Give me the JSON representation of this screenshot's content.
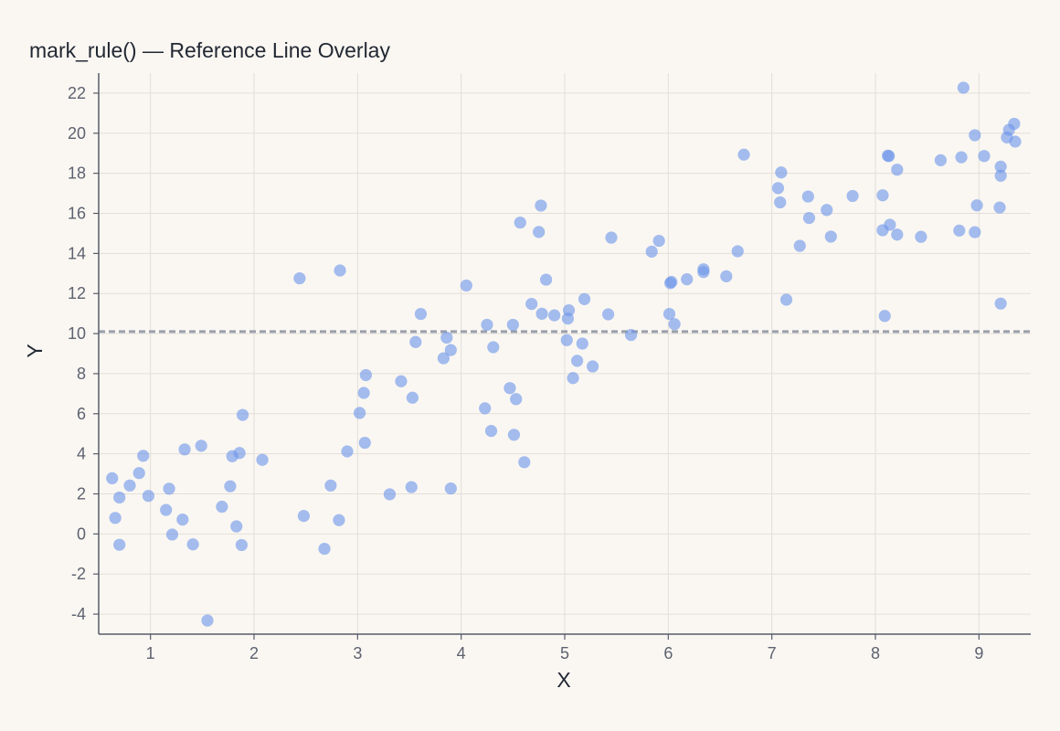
{
  "chart_data": {
    "type": "scatter",
    "title": "mark_rule() — Reference Line Overlay",
    "xlabel": "X",
    "ylabel": "Y",
    "xlim": [
      0.5,
      9.5
    ],
    "ylim": [
      -5,
      23
    ],
    "x_ticks": [
      "1",
      "2",
      "3",
      "4",
      "5",
      "6",
      "7",
      "8",
      "9"
    ],
    "y_ticks": [
      "-4",
      "-2",
      "0",
      "2",
      "4",
      "6",
      "8",
      "10",
      "12",
      "14",
      "16",
      "18",
      "20",
      "22"
    ],
    "grid": true,
    "colors": {
      "point": "#6e96ea",
      "rule": "#9aa0ab",
      "background": "#faf7f2"
    },
    "reference_line": {
      "y": 10.1
    },
    "points": [
      [
        0.63,
        2.78
      ],
      [
        0.66,
        0.8
      ],
      [
        0.7,
        1.82
      ],
      [
        0.7,
        -0.54
      ],
      [
        0.8,
        2.42
      ],
      [
        0.89,
        3.04
      ],
      [
        0.93,
        3.9
      ],
      [
        0.98,
        1.9
      ],
      [
        1.15,
        1.2
      ],
      [
        1.18,
        2.26
      ],
      [
        1.21,
        -0.03
      ],
      [
        1.31,
        0.72
      ],
      [
        1.33,
        4.22
      ],
      [
        1.41,
        -0.52
      ],
      [
        1.49,
        4.4
      ],
      [
        1.55,
        -4.32
      ],
      [
        1.69,
        1.36
      ],
      [
        1.77,
        2.38
      ],
      [
        1.79,
        3.88
      ],
      [
        1.83,
        0.38
      ],
      [
        1.86,
        4.04
      ],
      [
        1.88,
        -0.55
      ],
      [
        1.89,
        5.94
      ],
      [
        2.08,
        3.7
      ],
      [
        2.44,
        12.76
      ],
      [
        2.48,
        0.9
      ],
      [
        2.68,
        -0.74
      ],
      [
        2.74,
        2.42
      ],
      [
        2.82,
        0.69
      ],
      [
        2.83,
        13.15
      ],
      [
        2.9,
        4.12
      ],
      [
        3.02,
        6.04
      ],
      [
        3.06,
        7.04
      ],
      [
        3.07,
        4.55
      ],
      [
        3.08,
        7.93
      ],
      [
        3.31,
        1.98
      ],
      [
        3.42,
        7.62
      ],
      [
        3.52,
        2.34
      ],
      [
        3.53,
        6.8
      ],
      [
        3.56,
        9.58
      ],
      [
        3.61,
        10.98
      ],
      [
        3.83,
        8.77
      ],
      [
        3.86,
        9.8
      ],
      [
        3.9,
        2.27
      ],
      [
        3.9,
        9.18
      ],
      [
        4.05,
        12.4
      ],
      [
        4.23,
        6.27
      ],
      [
        4.25,
        10.44
      ],
      [
        4.29,
        5.14
      ],
      [
        4.31,
        9.32
      ],
      [
        4.47,
        7.28
      ],
      [
        4.5,
        10.44
      ],
      [
        4.51,
        4.95
      ],
      [
        4.53,
        6.73
      ],
      [
        4.57,
        15.54
      ],
      [
        4.61,
        3.58
      ],
      [
        4.68,
        11.48
      ],
      [
        4.75,
        15.07
      ],
      [
        4.77,
        16.39
      ],
      [
        4.78,
        10.99
      ],
      [
        4.82,
        12.69
      ],
      [
        4.9,
        10.91
      ],
      [
        5.02,
        9.67
      ],
      [
        5.03,
        10.75
      ],
      [
        5.04,
        11.16
      ],
      [
        5.08,
        7.78
      ],
      [
        5.12,
        8.64
      ],
      [
        5.17,
        9.5
      ],
      [
        5.19,
        11.72
      ],
      [
        5.27,
        8.36
      ],
      [
        5.42,
        10.96
      ],
      [
        5.45,
        14.79
      ],
      [
        5.64,
        9.93
      ],
      [
        5.84,
        14.09
      ],
      [
        5.91,
        14.63
      ],
      [
        6.01,
        10.98
      ],
      [
        6.02,
        12.52
      ],
      [
        6.03,
        12.58
      ],
      [
        6.06,
        10.47
      ],
      [
        6.18,
        12.71
      ],
      [
        6.34,
        13.07
      ],
      [
        6.34,
        13.21
      ],
      [
        6.56,
        12.86
      ],
      [
        6.67,
        14.11
      ],
      [
        6.73,
        18.93
      ],
      [
        7.06,
        17.26
      ],
      [
        7.08,
        16.55
      ],
      [
        7.09,
        18.04
      ],
      [
        7.14,
        11.69
      ],
      [
        7.27,
        14.38
      ],
      [
        7.35,
        16.84
      ],
      [
        7.36,
        15.77
      ],
      [
        7.53,
        16.17
      ],
      [
        7.57,
        14.84
      ],
      [
        7.78,
        16.87
      ],
      [
        8.07,
        16.9
      ],
      [
        8.07,
        15.16
      ],
      [
        8.09,
        10.88
      ],
      [
        8.12,
        18.88
      ],
      [
        8.13,
        18.86
      ],
      [
        8.14,
        15.43
      ],
      [
        8.21,
        18.18
      ],
      [
        8.21,
        14.94
      ],
      [
        8.44,
        14.83
      ],
      [
        8.63,
        18.65
      ],
      [
        8.81,
        15.14
      ],
      [
        8.83,
        18.8
      ],
      [
        8.85,
        22.27
      ],
      [
        8.96,
        19.9
      ],
      [
        8.96,
        15.06
      ],
      [
        8.98,
        16.4
      ],
      [
        9.05,
        18.86
      ],
      [
        9.2,
        16.29
      ],
      [
        9.21,
        11.5
      ],
      [
        9.21,
        18.33
      ],
      [
        9.21,
        17.88
      ],
      [
        9.27,
        19.79
      ],
      [
        9.29,
        20.17
      ],
      [
        9.34,
        20.47
      ],
      [
        9.35,
        19.58
      ]
    ]
  }
}
